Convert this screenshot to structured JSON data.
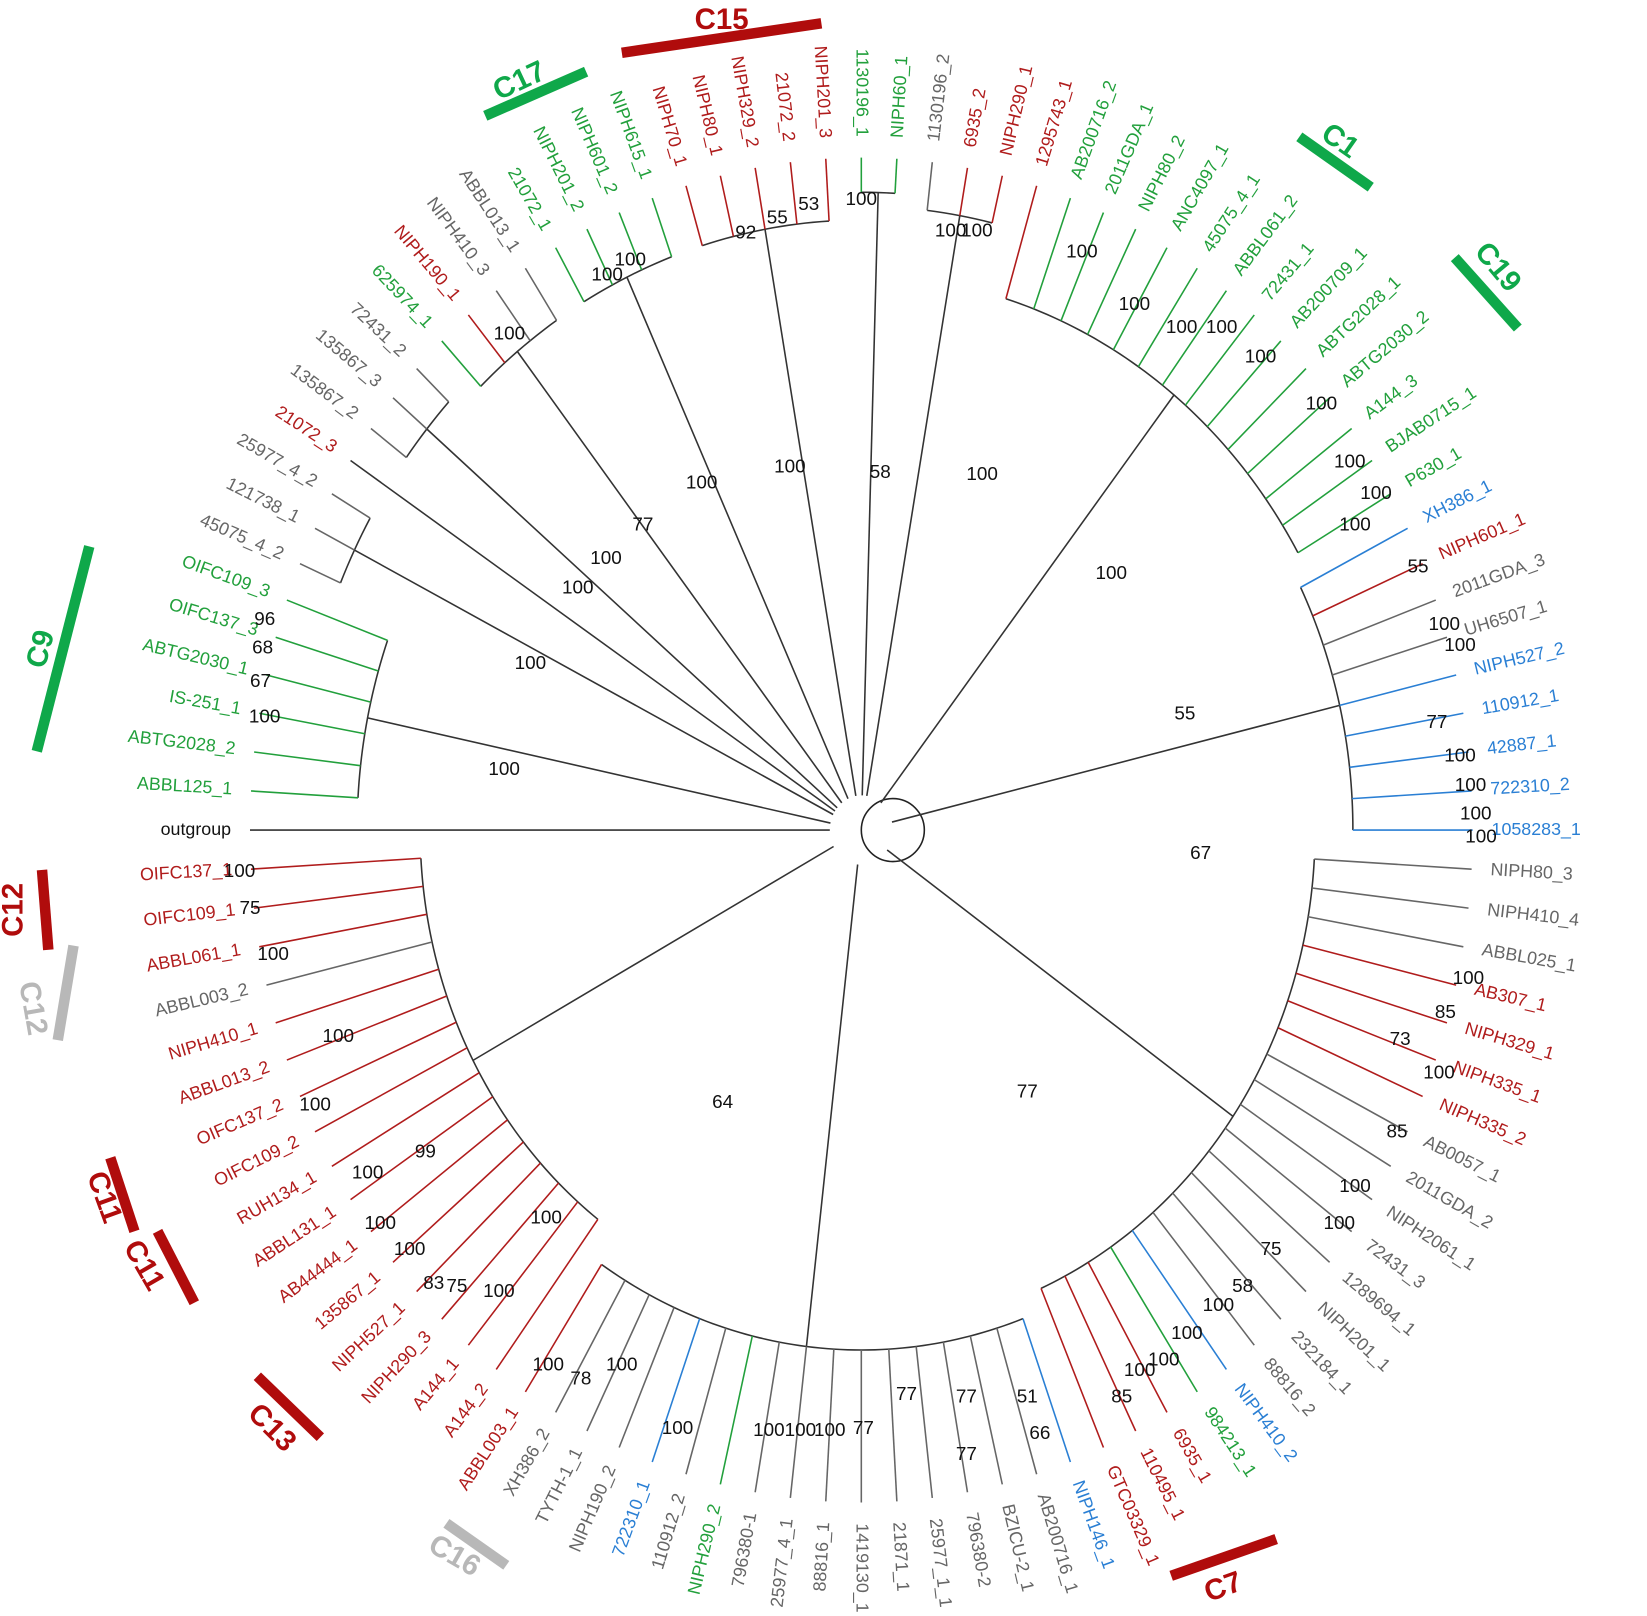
{
  "outgroup": "outgroup",
  "leaves": [
    {
      "label": "ABBL125_1",
      "color": "#22a03c"
    },
    {
      "label": "ABTG2028_2",
      "color": "#22a03c"
    },
    {
      "label": "IS-251_1",
      "color": "#22a03c"
    },
    {
      "label": "ABTG2030_1",
      "color": "#22a03c"
    },
    {
      "label": "OIFC137_3",
      "color": "#22a03c"
    },
    {
      "label": "OIFC109_3",
      "color": "#22a03c"
    },
    {
      "label": "45075_4_2",
      "color": "#666666"
    },
    {
      "label": "121738_1",
      "color": "#666666"
    },
    {
      "label": "25977_4_2",
      "color": "#666666"
    },
    {
      "label": "21072_3",
      "color": "#b01c1c"
    },
    {
      "label": "135867_2",
      "color": "#666666"
    },
    {
      "label": "135867_3",
      "color": "#666666"
    },
    {
      "label": "72431_2",
      "color": "#666666"
    },
    {
      "label": "625974_1",
      "color": "#22a03c"
    },
    {
      "label": "NIPH190_1",
      "color": "#b01c1c"
    },
    {
      "label": "NIPH410_3",
      "color": "#666666"
    },
    {
      "label": "ABBL013_1",
      "color": "#666666"
    },
    {
      "label": "21072_1",
      "color": "#22a03c"
    },
    {
      "label": "NIPH201_2",
      "color": "#22a03c"
    },
    {
      "label": "NIPH601_2",
      "color": "#22a03c"
    },
    {
      "label": "NIPH615_1",
      "color": "#22a03c"
    },
    {
      "label": "NIPH70_1",
      "color": "#b01c1c"
    },
    {
      "label": "NIPH80_1",
      "color": "#b01c1c"
    },
    {
      "label": "NIPH329_2",
      "color": "#b01c1c"
    },
    {
      "label": "21072_2",
      "color": "#b01c1c"
    },
    {
      "label": "NIPH201_3",
      "color": "#b01c1c"
    },
    {
      "label": "1130196_1",
      "color": "#22a03c"
    },
    {
      "label": "NIPH60_1",
      "color": "#22a03c"
    },
    {
      "label": "1130196_2",
      "color": "#666666"
    },
    {
      "label": "6935_2",
      "color": "#b01c1c"
    },
    {
      "label": "NIPH290_1",
      "color": "#b01c1c"
    },
    {
      "label": "1295743_1",
      "color": "#b01c1c"
    },
    {
      "label": "AB200716_2",
      "color": "#22a03c"
    },
    {
      "label": "2011GDA_1",
      "color": "#22a03c"
    },
    {
      "label": "NIPH80_2",
      "color": "#22a03c"
    },
    {
      "label": "ANC4097_1",
      "color": "#22a03c"
    },
    {
      "label": "45075_4_1",
      "color": "#22a03c"
    },
    {
      "label": "ABBL061_2",
      "color": "#22a03c"
    },
    {
      "label": "72431_1",
      "color": "#22a03c"
    },
    {
      "label": "AB200709_1",
      "color": "#22a03c"
    },
    {
      "label": "ABTG2028_1",
      "color": "#22a03c"
    },
    {
      "label": "ABTG2030_2",
      "color": "#22a03c"
    },
    {
      "label": "A144_3",
      "color": "#22a03c"
    },
    {
      "label": "BJAB0715_1",
      "color": "#22a03c"
    },
    {
      "label": "P630_1",
      "color": "#22a03c"
    },
    {
      "label": "XH386_1",
      "color": "#2a7fd4"
    },
    {
      "label": "NIPH601_1",
      "color": "#b01c1c"
    },
    {
      "label": "2011GDA_3",
      "color": "#666666"
    },
    {
      "label": "UH6507_1",
      "color": "#666666"
    },
    {
      "label": "NIPH527_2",
      "color": "#2a7fd4"
    },
    {
      "label": "110912_1",
      "color": "#2a7fd4"
    },
    {
      "label": "42887_1",
      "color": "#2a7fd4"
    },
    {
      "label": "722310_2",
      "color": "#2a7fd4"
    },
    {
      "label": "1058283_1",
      "color": "#2a7fd4"
    },
    {
      "label": "NIPH80_3",
      "color": "#666666"
    },
    {
      "label": "NIPH410_4",
      "color": "#666666"
    },
    {
      "label": "ABBL025_1",
      "color": "#666666"
    },
    {
      "label": "AB307_1",
      "color": "#b01c1c"
    },
    {
      "label": "NIPH329_1",
      "color": "#b01c1c"
    },
    {
      "label": "NIPH335_1",
      "color": "#b01c1c"
    },
    {
      "label": "NIPH335_2",
      "color": "#b01c1c"
    },
    {
      "label": "AB0057_1",
      "color": "#666666"
    },
    {
      "label": "2011GDA_2",
      "color": "#666666"
    },
    {
      "label": "NIPH2061_1",
      "color": "#666666"
    },
    {
      "label": "72431_3",
      "color": "#666666"
    },
    {
      "label": "1289694_1",
      "color": "#666666"
    },
    {
      "label": "NIPH201_1",
      "color": "#666666"
    },
    {
      "label": "232184_1",
      "color": "#666666"
    },
    {
      "label": "88816_2",
      "color": "#666666"
    },
    {
      "label": "NIPH410_2",
      "color": "#2a7fd4"
    },
    {
      "label": "984213_1",
      "color": "#22a03c"
    },
    {
      "label": "6935_1",
      "color": "#b01c1c"
    },
    {
      "label": "110495_1",
      "color": "#b01c1c"
    },
    {
      "label": "GTC03329_1",
      "color": "#b01c1c"
    },
    {
      "label": "NIPH146_1",
      "color": "#2a7fd4"
    },
    {
      "label": "AB200716_1",
      "color": "#666666"
    },
    {
      "label": "BZICU-2_1",
      "color": "#666666"
    },
    {
      "label": "796380-2",
      "color": "#666666"
    },
    {
      "label": "25977_1_1",
      "color": "#666666"
    },
    {
      "label": "21871_1",
      "color": "#666666"
    },
    {
      "label": "1419130_1",
      "color": "#666666"
    },
    {
      "label": "88816_1",
      "color": "#666666"
    },
    {
      "label": "25977_4_1",
      "color": "#666666"
    },
    {
      "label": "796380-1",
      "color": "#666666"
    },
    {
      "label": "NIPH290_2",
      "color": "#22a03c"
    },
    {
      "label": "110912_2",
      "color": "#666666"
    },
    {
      "label": "722310_1",
      "color": "#2a7fd4"
    },
    {
      "label": "NIPH190_2",
      "color": "#666666"
    },
    {
      "label": "TYTH-1_1",
      "color": "#666666"
    },
    {
      "label": "XH386_2",
      "color": "#666666"
    },
    {
      "label": "ABBL003_1",
      "color": "#b01c1c"
    },
    {
      "label": "A144_2",
      "color": "#b01c1c"
    },
    {
      "label": "A144_1",
      "color": "#b01c1c"
    },
    {
      "label": "NIPH290_3",
      "color": "#b01c1c"
    },
    {
      "label": "NIPH527_1",
      "color": "#b01c1c"
    },
    {
      "label": "135867_1",
      "color": "#b01c1c"
    },
    {
      "label": "AB44444_1",
      "color": "#b01c1c"
    },
    {
      "label": "ABBL131_1",
      "color": "#b01c1c"
    },
    {
      "label": "RUH134_1",
      "color": "#b01c1c"
    },
    {
      "label": "OIFC109_2",
      "color": "#b01c1c"
    },
    {
      "label": "OIFC137_2",
      "color": "#b01c1c"
    },
    {
      "label": "ABBL013_2",
      "color": "#b01c1c"
    },
    {
      "label": "NIPH410_1",
      "color": "#b01c1c"
    },
    {
      "label": "ABBL003_2",
      "color": "#666666"
    },
    {
      "label": "ABBL061_1",
      "color": "#b01c1c"
    },
    {
      "label": "OIFC109_1",
      "color": "#b01c1c"
    },
    {
      "label": "OIFC137_1",
      "color": "#b01c1c"
    }
  ],
  "clades": [
    {
      "label": "C9",
      "color": "#0fa84a"
    },
    {
      "label": "C17",
      "color": "#0fa84a"
    },
    {
      "label": "C15",
      "color": "#b00c0c"
    },
    {
      "label": "C1",
      "color": "#0fa84a"
    },
    {
      "label": "C19",
      "color": "#0fa84a"
    },
    {
      "label": "C12",
      "color": "#b00c0c"
    },
    {
      "label": "C12",
      "color": "#b8b8b8"
    },
    {
      "label": "C11",
      "color": "#b00c0c"
    },
    {
      "label": "C11",
      "color": "#b00c0c"
    },
    {
      "label": "C13",
      "color": "#b00c0c"
    },
    {
      "label": "C16",
      "color": "#b8b8b8"
    },
    {
      "label": "C7",
      "color": "#b00c0c"
    }
  ],
  "support_values": [
    100,
    100,
    100,
    100,
    77,
    100,
    100,
    58,
    100,
    100,
    55,
    67,
    77,
    64,
    100,
    99,
    100,
    100,
    75,
    100,
    96,
    68,
    67,
    100,
    100,
    100,
    85,
    73,
    100,
    85,
    100,
    100,
    75,
    58,
    100,
    100,
    100,
    100,
    85,
    51,
    66,
    77,
    77,
    77,
    77,
    100,
    100,
    100,
    100,
    100,
    78,
    100,
    100,
    75,
    83,
    100,
    100,
    100,
    100,
    55,
    100,
    100,
    77,
    100,
    100,
    100,
    100,
    100,
    100,
    100,
    100,
    100,
    100,
    100,
    100,
    100,
    100,
    100,
    53,
    55,
    92,
    100,
    100,
    100
  ]
}
